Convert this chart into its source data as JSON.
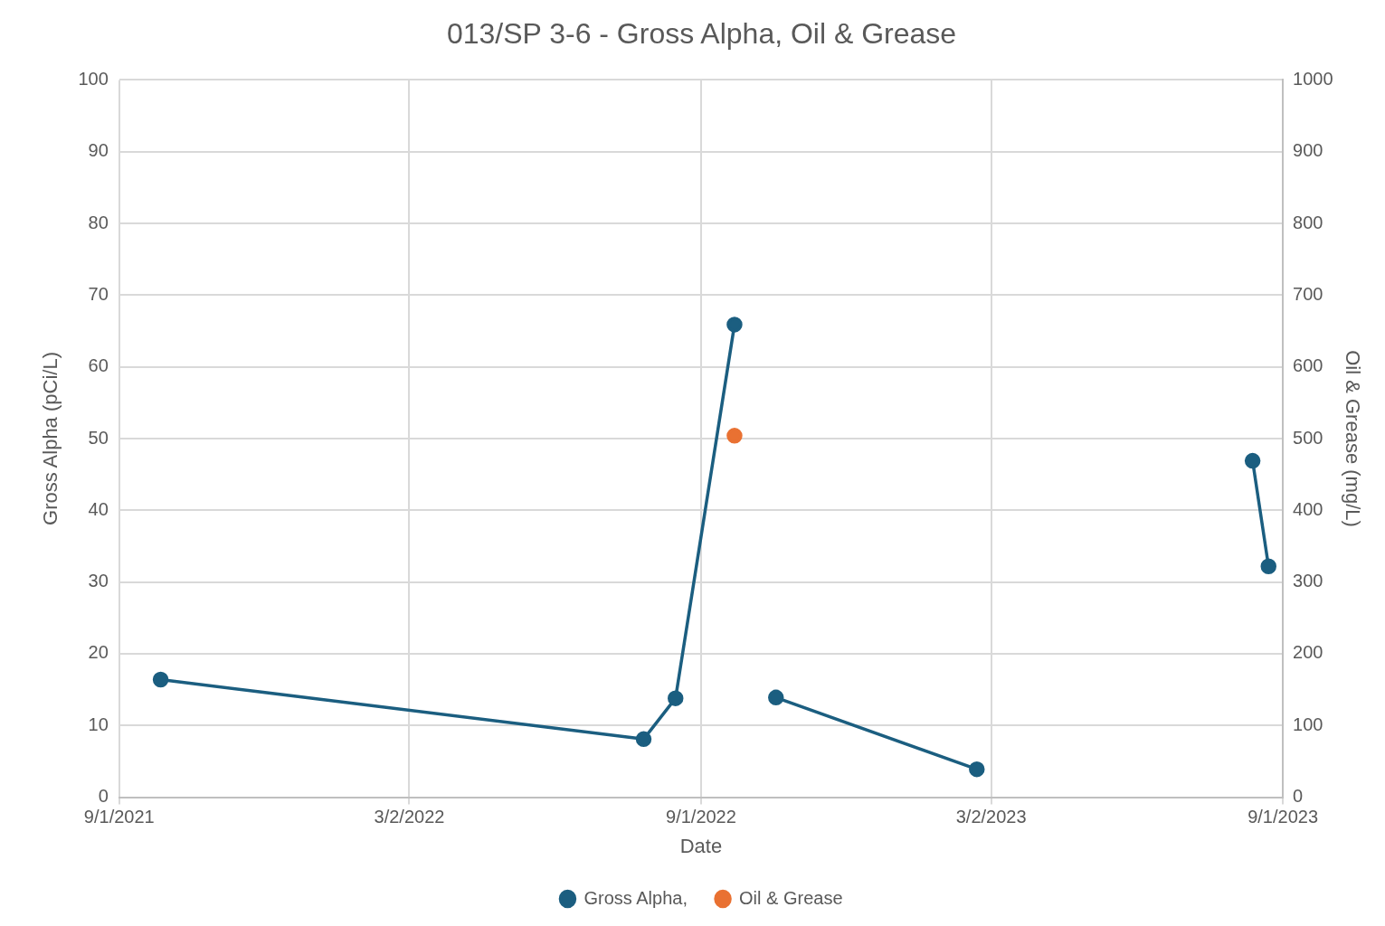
{
  "chart_data": {
    "type": "line",
    "title": "013/SP 3-6 - Gross Alpha, Oil & Grease",
    "xlabel": "Date",
    "ylabel": "Gross Alpha (pCi/L)",
    "y2label": "Oil & Grease (mg/L)",
    "series": [
      {
        "name": "Gross Alpha,",
        "color": "#1b5e80",
        "x": [
          "2021-09-27",
          "2022-07-27",
          "2022-08-16",
          "2022-09-22",
          "2022-10-05",
          "2022-10-18",
          "2023-02-21",
          "2023-05-01",
          "2023-08-13",
          "2023-08-23"
        ],
        "values": [
          16.4,
          8.1,
          13.8,
          65.9,
          null,
          13.9,
          3.9,
          null,
          46.9,
          32.2
        ]
      },
      {
        "name": "Oil & Grease",
        "color": "#e97132",
        "axis": "y2",
        "x": [
          "2022-09-22"
        ],
        "values": [
          504
        ]
      }
    ],
    "xlim": [
      "2021-09-01",
      "2023-09-01"
    ],
    "xticks": [
      {
        "value": "2021-09-01",
        "label": "9/1/2021"
      },
      {
        "value": "2022-03-02",
        "label": "3/2/2022"
      },
      {
        "value": "2022-09-01",
        "label": "9/1/2022"
      },
      {
        "value": "2023-03-02",
        "label": "3/2/2023"
      },
      {
        "value": "2023-09-01",
        "label": "9/1/2023"
      }
    ],
    "ylim": [
      0,
      100
    ],
    "yticks": [
      0,
      10,
      20,
      30,
      40,
      50,
      60,
      70,
      80,
      90,
      100
    ],
    "y2lim": [
      0,
      1000
    ],
    "y2ticks": [
      0,
      100,
      200,
      300,
      400,
      500,
      600,
      700,
      800,
      900,
      1000
    ],
    "grid": true,
    "legend": "bottom",
    "marker": "circle"
  }
}
